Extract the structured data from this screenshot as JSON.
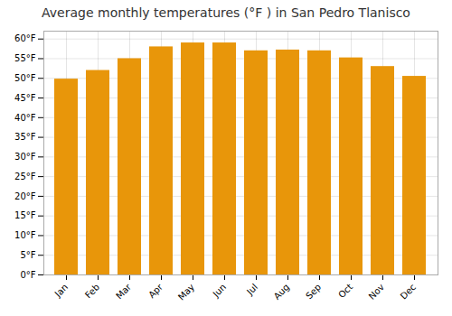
{
  "chart_data": {
    "type": "bar",
    "title": "Average monthly temperatures (°F ) in San Pedro Tlanisco",
    "categories": [
      "Jan",
      "Feb",
      "Mar",
      "Apr",
      "May",
      "Jun",
      "Jul",
      "Aug",
      "Sep",
      "Oct",
      "Nov",
      "Dec"
    ],
    "values": [
      49.8,
      52.0,
      55.0,
      58.0,
      59.0,
      59.0,
      57.0,
      57.2,
      57.0,
      55.2,
      53.0,
      50.5
    ],
    "color": "#E8960A",
    "ylim": [
      0,
      62
    ],
    "yticks": [
      {
        "value": 0,
        "label": "0°F"
      },
      {
        "value": 5,
        "label": "5°F"
      },
      {
        "value": 10,
        "label": "10°F"
      },
      {
        "value": 15,
        "label": "15°F"
      },
      {
        "value": 20,
        "label": "20°F"
      },
      {
        "value": 25,
        "label": "25°F"
      },
      {
        "value": 30,
        "label": "30°F"
      },
      {
        "value": 35,
        "label": "35°F"
      },
      {
        "value": 40,
        "label": "40°F"
      },
      {
        "value": 45,
        "label": "45°F"
      },
      {
        "value": 50,
        "label": "50°F"
      },
      {
        "value": 55,
        "label": "55°F"
      },
      {
        "value": 60,
        "label": "60°F"
      }
    ],
    "grid": true
  }
}
